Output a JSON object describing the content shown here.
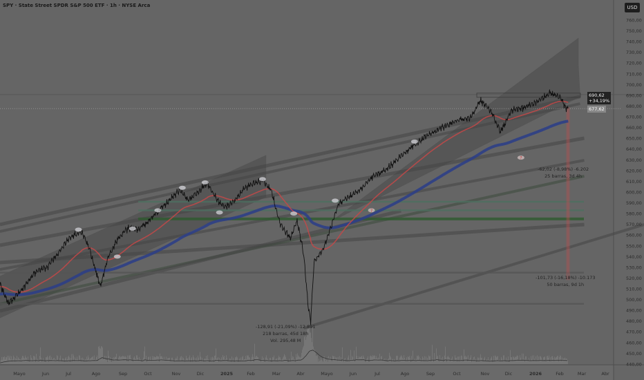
{
  "header": {
    "title": "SPY · State Street SPDR S&P 500 ETF · 1h · NYSE Arca",
    "currency_button": "USD"
  },
  "price_labels": {
    "current": "690,62",
    "change": "+34,19%",
    "last": "677,62"
  },
  "annotations": [
    {
      "line1": "-128,91 (-21,09%) -12.891",
      "line2": "218 barras, 45d 18h",
      "line3": "Vol. 295,48 M"
    },
    {
      "line1": "-62,02 (-8,98%) -6.202",
      "line2": "25 barras, 3d 4h"
    },
    {
      "line1": "-101,73 (-16,18%) -10.173",
      "line2": "50 barras, 9d 1h"
    }
  ],
  "colors": {
    "background": "#656565",
    "price": "#111111",
    "ma_fast": "#c44848",
    "ma_slow": "#2e3f86",
    "green_level": "#2f5a2f",
    "measure": "#c05050"
  },
  "chart_data": {
    "type": "line",
    "title": "SPY · State Street SPDR S&P 500 ETF · 1h · NYSE Arca",
    "ylim": [
      440,
      760
    ],
    "y_ticks": [
      "760,00",
      "750,00",
      "740,00",
      "730,00",
      "720,00",
      "710,00",
      "700,00",
      "690,00",
      "680,00",
      "670,00",
      "660,00",
      "650,00",
      "640,00",
      "630,00",
      "620,00",
      "610,00",
      "600,00",
      "590,00",
      "580,00",
      "570,00",
      "560,00",
      "550,00",
      "540,00",
      "530,00",
      "520,00",
      "510,00",
      "500,00",
      "490,00",
      "480,00",
      "470,00",
      "460,00",
      "450,00",
      "440,00"
    ],
    "x_ticks": [
      "Mayo",
      "Jun",
      "Jul",
      "Ago",
      "Sep",
      "Oct",
      "Nov",
      "Dic",
      "2025",
      "Feb",
      "Mar",
      "Abr",
      "Mayo",
      "Jun",
      "Jul",
      "Ago",
      "Sep",
      "Oct",
      "Nov",
      "Dic",
      "2026",
      "Feb",
      "Mar",
      "Abr"
    ],
    "price": [
      [
        "2024-04-08",
        515
      ],
      [
        "2024-04-18",
        496
      ],
      [
        "2024-05-03",
        508
      ],
      [
        "2024-05-19",
        525
      ],
      [
        "2024-06-04",
        531
      ],
      [
        "2024-06-29",
        557
      ],
      [
        "2024-07-14",
        563
      ],
      [
        "2024-07-23",
        547
      ],
      [
        "2024-08-05",
        512
      ],
      [
        "2024-08-13",
        537
      ],
      [
        "2024-08-25",
        556
      ],
      [
        "2024-09-06",
        566
      ],
      [
        "2024-09-19",
        566
      ],
      [
        "2024-10-01",
        573
      ],
      [
        "2024-10-17",
        586
      ],
      [
        "2024-11-07",
        602
      ],
      [
        "2024-11-17",
        592
      ],
      [
        "2024-12-10",
        608
      ],
      [
        "2024-12-22",
        592
      ],
      [
        "2024-12-30",
        586
      ],
      [
        "2025-01-11",
        592
      ],
      [
        "2025-01-24",
        605
      ],
      [
        "2025-02-13",
        611
      ],
      [
        "2025-02-23",
        602
      ],
      [
        "2025-03-06",
        570
      ],
      [
        "2025-03-18",
        557
      ],
      [
        "2025-03-26",
        573
      ],
      [
        "2025-04-03",
        541
      ],
      [
        "2025-04-08",
        493
      ],
      [
        "2025-04-11",
        480
      ],
      [
        "2025-04-15",
        535
      ],
      [
        "2025-04-24",
        544
      ],
      [
        "2025-05-02",
        560
      ],
      [
        "2025-05-14",
        589
      ],
      [
        "2025-05-26",
        595
      ],
      [
        "2025-06-08",
        602
      ],
      [
        "2025-06-24",
        615
      ],
      [
        "2025-07-10",
        621
      ],
      [
        "2025-07-27",
        634
      ],
      [
        "2025-08-12",
        644
      ],
      [
        "2025-08-28",
        653
      ],
      [
        "2025-09-14",
        660
      ],
      [
        "2025-09-30",
        666
      ],
      [
        "2025-10-17",
        669
      ],
      [
        "2025-10-29",
        685
      ],
      [
        "2025-11-10",
        676
      ],
      [
        "2025-11-22",
        656
      ],
      [
        "2025-12-05",
        676
      ],
      [
        "2025-12-21",
        679
      ],
      [
        "2026-01-06",
        685
      ],
      [
        "2026-01-19",
        692
      ],
      [
        "2026-01-31",
        689
      ],
      [
        "2026-02-06",
        679
      ],
      [
        "2026-02-10",
        677.62
      ]
    ],
    "horizontal_levels": [
      {
        "price": 690.62,
        "style": "solid"
      },
      {
        "price": 677.62,
        "style": "dotted"
      },
      {
        "price": 591,
        "color": "#4d7060"
      },
      {
        "price": 583,
        "color": "#4d7060"
      },
      {
        "price": 575,
        "color": "#2f5a2f"
      },
      {
        "price": 525,
        "color": "#555555"
      },
      {
        "price": 496,
        "color": "#555555"
      }
    ],
    "trendlines": [
      [
        [
          "2024-04-08",
          569.8
        ],
        [
          "2026-02-24",
          688.7
        ]
      ],
      [
        [
          "2024-04-08",
          563.3
        ],
        [
          "2026-02-24",
          682.2
        ]
      ],
      [
        [
          "2024-04-08",
          550.5
        ],
        [
          "2026-03-01",
          650.1
        ]
      ],
      [
        [
          "2024-04-08",
          528
        ],
        [
          "2026-03-01",
          629.5
        ]
      ],
      [
        [
          "2024-04-08",
          534.4
        ],
        [
          "2026-03-01",
          569.8
        ]
      ],
      [
        [
          "2024-04-08",
          495.9
        ],
        [
          "2026-03-01",
          614.8
        ]
      ],
      [
        [
          "2024-04-08",
          489.4
        ],
        [
          "2025-07-27",
          582.6
        ]
      ],
      [
        [
          "2025-04-03",
          473.4
        ],
        [
          "2026-05-11",
          569.8
        ]
      ]
    ],
    "channels": [
      [
        [
          "2024-04-08",
          521.6
        ],
        [
          "2025-02-17",
          634
        ],
        [
          "2025-02-17",
          595.5
        ],
        [
          "2024-04-08",
          483
        ]
      ],
      [
        [
          "2025-05-06",
          573
        ],
        [
          "2026-02-22",
          743
        ],
        [
          "2026-02-22",
          718
        ],
        [
          "2026-02-24",
          688.7
        ]
      ]
    ]
  }
}
